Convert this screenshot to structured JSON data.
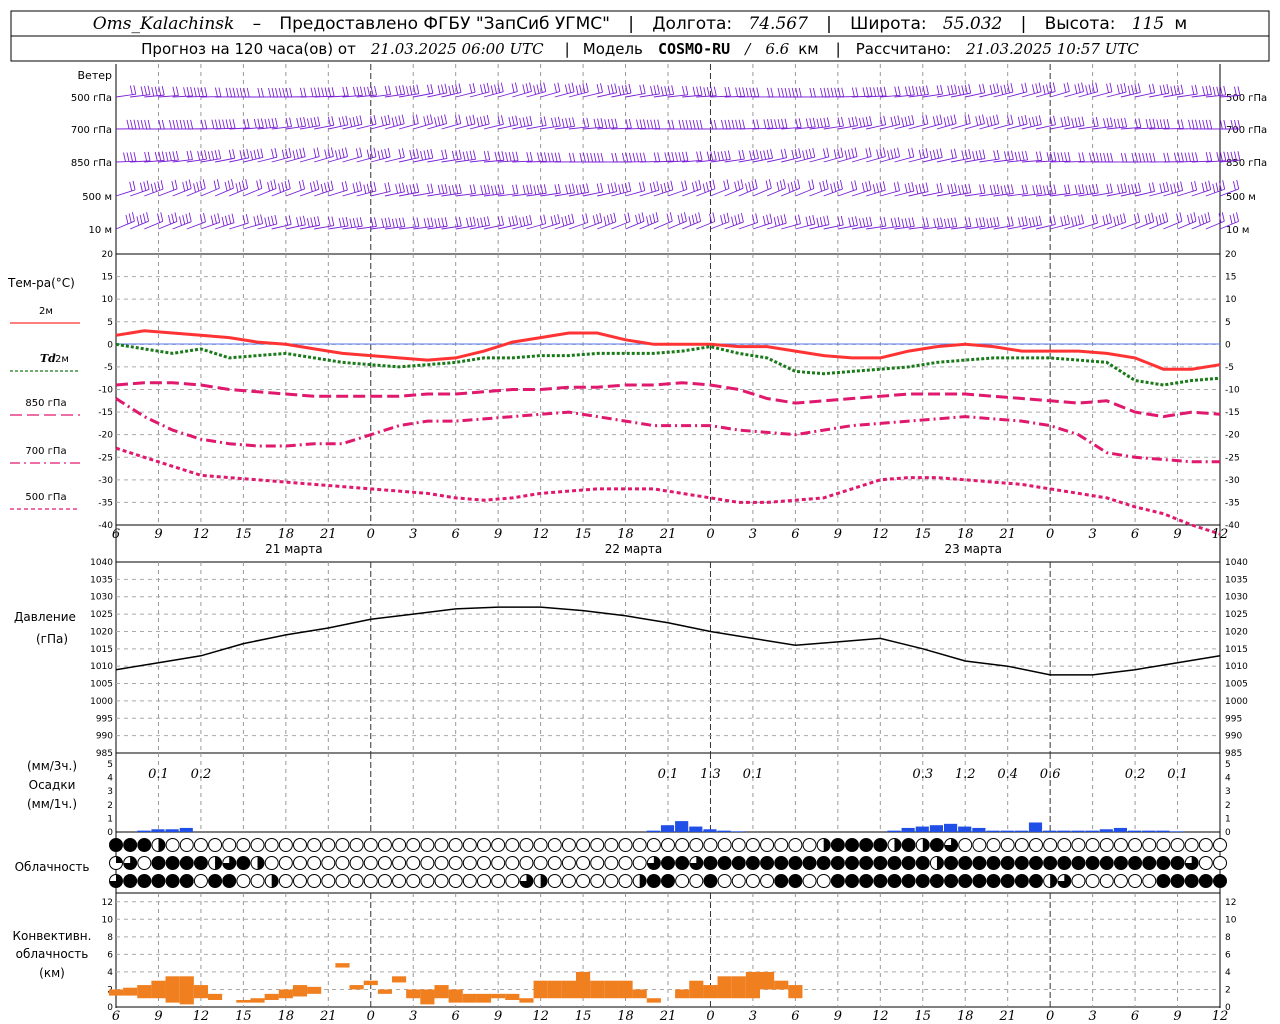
{
  "header": {
    "station": "Oms_Kalachinsk",
    "dash": "–",
    "provider": "Предоставлено ФГБУ \"ЗапСиб УГМС\"",
    "lon_label": "Долгота:",
    "lon_value": "74.567",
    "lat_label": "Широта:",
    "lat_value": "55.032",
    "alt_label": "Высота:",
    "alt_value": "115",
    "alt_unit": "м",
    "forecast_prefix": "Прогноз на 120 часа(ов) от",
    "forecast_start": "21.03.2025 06:00 UTC",
    "model_label": "Модель",
    "model_name": "COSMO-RU",
    "model_sep": "/",
    "model_res": "6.6",
    "model_res_unit": "км",
    "calc_label": "Рассчитано:",
    "calc_time": "21.03.2025 10:57 UTC"
  },
  "x_axis": {
    "hour_labels": [
      "6",
      "9",
      "12",
      "15",
      "18",
      "21",
      "0",
      "3",
      "6",
      "9",
      "12",
      "15",
      "18",
      "21",
      "0",
      "3",
      "6",
      "9",
      "12",
      "15",
      "18",
      "21",
      "0",
      "3",
      "6",
      "9",
      "12"
    ],
    "day_labels": [
      "21 марта",
      "22 марта",
      "23 марта"
    ]
  },
  "wind_panel": {
    "title": "Ветер",
    "levels": [
      "500 гПа",
      "700 гПа",
      "850 гПа",
      "500 м",
      "10 м"
    ],
    "color": "#7a1fd6"
  },
  "temp_panel": {
    "title": "Тем-ра(°С)",
    "ticks": [
      "20",
      "15",
      "10",
      "5",
      "0",
      "-5",
      "-10",
      "-15",
      "-20",
      "-25",
      "-30",
      "-35",
      "-40"
    ],
    "legend": [
      {
        "label": "2м",
        "color": "#ff3333",
        "style": "solid"
      },
      {
        "label_prefix": "Td",
        "label": "2м",
        "color": "#1a7a1a",
        "style": "dotted"
      },
      {
        "label": "850 гПа",
        "color": "#e0186e",
        "style": "dashed"
      },
      {
        "label": "700 гПа",
        "color": "#e0186e",
        "style": "dashdot"
      },
      {
        "label": "500 гПа",
        "color": "#e0186e",
        "style": "short-dashed"
      }
    ]
  },
  "pressure_panel": {
    "title": "Давление",
    "unit": "(гПа)",
    "ticks": [
      "1040",
      "1035",
      "1030",
      "1025",
      "1020",
      "1015",
      "1010",
      "1005",
      "1000",
      "995",
      "990",
      "985"
    ]
  },
  "precip_panel": {
    "unit_top": "(мм/3ч.)",
    "title": "Осадки",
    "unit_bottom": "(мм/1ч.)",
    "ticks": [
      "5",
      "4",
      "3",
      "2",
      "1",
      "0"
    ],
    "labels": [
      {
        "h": 3,
        "text": "0.1"
      },
      {
        "h": 6,
        "text": "0.2"
      },
      {
        "h": 39,
        "text": "0.1"
      },
      {
        "h": 42,
        "text": "1.3"
      },
      {
        "h": 45,
        "text": "0.1"
      },
      {
        "h": 57,
        "text": "0.3"
      },
      {
        "h": 60,
        "text": "1.2"
      },
      {
        "h": 63,
        "text": "0.4"
      },
      {
        "h": 66,
        "text": "0.6"
      },
      {
        "h": 72,
        "text": "0.2"
      },
      {
        "h": 75,
        "text": "0.1"
      }
    ],
    "color": "#1f4fe6"
  },
  "cloud_panel": {
    "title": "Облачность",
    "row1": "FFFHOOOOOOOOOOOOOOOOOOOOOOOOOOOOOOOOOOOOOOOOOOOOOOHFFFFHFHFQOOOOOOOOOOOOOOOOOOOOOOOOOOOOOOOOOOOOOOOOOOOOOOOOOOOOOOOOOOOOOOOOOOOOOOOOOOOOOOOOOOOOOOOOOOOOOOOOOOOOOOOOOOOOOOOOOOOOOOOOOOOOOOOOOOOOOOOOOOOOOOOOOOOOOOOOOOOOOOO",
    "row2": "TQOFFFFHQFHOOOOOOOOOOOOOOOOOOOOOOOOOOOQFFQFFFFFFFFFFFFFFFFHFFFFFFFFFFFFFFFFFQOOOOOOOOOOQOOOOOOOOFFFFFFFFFFFFFOOOOOOOOOOOOOOOOOOOOOOOOOOOOOOOOOOOOOOOOOOOOOOOOOOOOOOOOOOOOOOOOOOOOOOOOOOOOOOOOOOOOOOOOOOOOOOOOOO",
    "row3": "QFFFFFOFFOOHOOOOOOOOOOOOOOOOOQHOOOOOOHFFOOFOOOOFFOOFFFFFFFFFFFFFFFHQOOOOOOFFFFFFFFFFFFFFFFFFOOOOOOOOOOOOOOOOOOOOOOOOOOOOOOOOOOOOOOOOOOOOOOOOOOOOOOOOOOOOOOOOOOOOOOOOOOOOOOOOOOOOOOOOOOOOOOOOOOOOOOOOOOOOO"
  },
  "conv_panel": {
    "title_1": "Конвективн.",
    "title_2": "облачность",
    "unit": "(км)",
    "ticks": [
      "12",
      "10",
      "8",
      "6",
      "4",
      "2",
      "0"
    ],
    "color": "#f07f20"
  },
  "chart_data": [
    {
      "type": "line",
      "title": "Тем-ра(°С)",
      "ylim": [
        -40,
        20
      ],
      "x_hours": [
        0,
        2,
        4,
        6,
        8,
        10,
        12,
        14,
        16,
        18,
        20,
        22,
        24,
        26,
        28,
        30,
        32,
        34,
        36,
        38,
        40,
        42,
        44,
        46,
        48,
        50,
        52,
        54,
        56,
        58,
        60,
        62,
        64,
        66,
        68,
        70,
        72,
        74,
        76,
        78
      ],
      "series": [
        {
          "name": "2м",
          "values": [
            2,
            3,
            2.5,
            2,
            1.5,
            0.5,
            0,
            -1,
            -2,
            -2.5,
            -3,
            -3.5,
            -3,
            -1.5,
            0.5,
            1.5,
            2.5,
            2.5,
            1,
            0,
            0,
            0,
            -0.5,
            -0.5,
            -1.5,
            -2.5,
            -3,
            -3,
            -1.5,
            -0.5,
            0,
            -0.5,
            -1.5,
            -1.5,
            -1.5,
            -2,
            -3,
            -5.5,
            -5.5,
            -4.5
          ]
        },
        {
          "name": "Td 2м",
          "values": [
            0,
            -1,
            -2,
            -1,
            -3,
            -2.5,
            -2,
            -3,
            -4,
            -4.5,
            -5,
            -4.5,
            -4,
            -3,
            -3,
            -2.5,
            -2.5,
            -2,
            -2,
            -2,
            -1.5,
            -0.5,
            -2,
            -3,
            -6,
            -6.5,
            -6,
            -5.5,
            -5,
            -4,
            -3.5,
            -3,
            -3,
            -3,
            -3.5,
            -4,
            -8,
            -9,
            -8,
            -7.5
          ]
        },
        {
          "name": "850 гПа",
          "values": [
            -9,
            -8.5,
            -8.5,
            -9,
            -10,
            -10.5,
            -11,
            -11.5,
            -11.5,
            -11.5,
            -11.5,
            -11,
            -11,
            -10.5,
            -10,
            -10,
            -9.5,
            -9.5,
            -9,
            -9,
            -8.5,
            -9,
            -10,
            -12,
            -13,
            -12.5,
            -12,
            -11.5,
            -11,
            -11,
            -11,
            -11.5,
            -12,
            -12.5,
            -13,
            -12.5,
            -15,
            -16,
            -15,
            -15.5
          ]
        },
        {
          "name": "700 гПа",
          "values": [
            -12,
            -16,
            -19,
            -21,
            -22,
            -22.5,
            -22.5,
            -22,
            -22,
            -20,
            -18,
            -17,
            -17,
            -16.5,
            -16,
            -15.5,
            -15,
            -16,
            -17,
            -18,
            -18,
            -18,
            -19,
            -19.5,
            -20,
            -19,
            -18,
            -17.5,
            -17,
            -16.5,
            -16,
            -16.5,
            -17,
            -18,
            -20,
            -24,
            -25,
            -25.5,
            -26,
            -26
          ]
        },
        {
          "name": "500 гПа",
          "values": [
            -23,
            -25,
            -27,
            -29,
            -29.5,
            -30,
            -30.5,
            -31,
            -31.5,
            -32,
            -32.5,
            -33,
            -34,
            -34.5,
            -34,
            -33,
            -32.5,
            -32,
            -32,
            -32,
            -33,
            -34,
            -35,
            -35,
            -34.5,
            -34,
            -32,
            -30,
            -29.5,
            -29.5,
            -30,
            -30.5,
            -31,
            -32,
            -33,
            -34,
            -36,
            -37.5,
            -40,
            -42
          ]
        }
      ]
    },
    {
      "type": "line",
      "title": "Давление",
      "ylabel": "(гПа)",
      "ylim": [
        985,
        1040
      ],
      "x_hours": [
        0,
        3,
        6,
        9,
        12,
        15,
        18,
        21,
        24,
        27,
        30,
        33,
        36,
        39,
        42,
        45,
        48,
        51,
        54,
        57,
        60,
        63,
        66,
        69,
        72,
        75,
        78
      ],
      "values": [
        1009,
        1011,
        1013,
        1016.5,
        1019,
        1021,
        1023.5,
        1025,
        1026.5,
        1027,
        1027,
        1026,
        1024.5,
        1022.5,
        1020,
        1018,
        1016,
        1017,
        1018,
        1015,
        1011.5,
        1010,
        1007.5,
        1007.5,
        1009,
        1011,
        1013
      ]
    },
    {
      "type": "bar",
      "title": "Осадки",
      "ylabel": "(мм/1ч.)",
      "ylim": [
        0,
        5
      ],
      "x_hours": [
        2,
        3,
        4,
        5,
        38,
        39,
        40,
        41,
        42,
        43,
        44,
        55,
        56,
        57,
        58,
        59,
        60,
        61,
        62,
        63,
        64,
        65,
        66,
        67,
        68,
        69,
        70,
        71,
        72,
        73,
        74,
        75
      ],
      "values": [
        0.1,
        0.2,
        0.2,
        0.3,
        0.1,
        0.5,
        0.8,
        0.4,
        0.2,
        0.1,
        0.05,
        0.1,
        0.3,
        0.4,
        0.5,
        0.6,
        0.4,
        0.3,
        0.1,
        0.1,
        0.1,
        0.7,
        0.1,
        0.1,
        0.1,
        0.1,
        0.2,
        0.3,
        0.1,
        0.1,
        0.1,
        0.05
      ]
    },
    {
      "type": "bar",
      "title": "Конвективн. облачность",
      "ylabel": "(км)",
      "ylim": [
        0,
        13
      ],
      "segments": [
        {
          "h": 0,
          "top": 2,
          "bottom": 1.3
        },
        {
          "h": 1,
          "top": 2.2,
          "bottom": 1.3
        },
        {
          "h": 2,
          "top": 2.5,
          "bottom": 1
        },
        {
          "h": 3,
          "top": 3,
          "bottom": 1
        },
        {
          "h": 4,
          "top": 3.5,
          "bottom": 0.5
        },
        {
          "h": 5,
          "top": 3.5,
          "bottom": 0.3
        },
        {
          "h": 6,
          "top": 2.5,
          "bottom": 1
        },
        {
          "h": 7,
          "top": 1.5,
          "bottom": 0.8
        },
        {
          "h": 9,
          "top": 0.8,
          "bottom": 0.5
        },
        {
          "h": 10,
          "top": 1,
          "bottom": 0.5
        },
        {
          "h": 11,
          "top": 1.5,
          "bottom": 0.8
        },
        {
          "h": 12,
          "top": 2,
          "bottom": 1
        },
        {
          "h": 13,
          "top": 2.5,
          "bottom": 1.2
        },
        {
          "h": 14,
          "top": 2.3,
          "bottom": 1.5
        },
        {
          "h": 16,
          "top": 5,
          "bottom": 4.5
        },
        {
          "h": 17,
          "top": 2.5,
          "bottom": 2
        },
        {
          "h": 18,
          "top": 3,
          "bottom": 2.5
        },
        {
          "h": 19,
          "top": 2,
          "bottom": 1.5
        },
        {
          "h": 20,
          "top": 3.5,
          "bottom": 2.8
        },
        {
          "h": 21,
          "top": 2,
          "bottom": 1
        },
        {
          "h": 22,
          "top": 2,
          "bottom": 0.3
        },
        {
          "h": 23,
          "top": 2.5,
          "bottom": 1
        },
        {
          "h": 24,
          "top": 2,
          "bottom": 0.5
        },
        {
          "h": 25,
          "top": 1.5,
          "bottom": 0.5
        },
        {
          "h": 26,
          "top": 1.5,
          "bottom": 0.5
        },
        {
          "h": 27,
          "top": 1.5,
          "bottom": 1
        },
        {
          "h": 28,
          "top": 1.5,
          "bottom": 0.8
        },
        {
          "h": 29,
          "top": 1,
          "bottom": 0.5
        },
        {
          "h": 30,
          "top": 3,
          "bottom": 1
        },
        {
          "h": 31,
          "top": 3,
          "bottom": 1
        },
        {
          "h": 32,
          "top": 3,
          "bottom": 1
        },
        {
          "h": 33,
          "top": 4,
          "bottom": 1
        },
        {
          "h": 34,
          "top": 3,
          "bottom": 1
        },
        {
          "h": 35,
          "top": 3,
          "bottom": 1
        },
        {
          "h": 36,
          "top": 3,
          "bottom": 1
        },
        {
          "h": 37,
          "top": 2,
          "bottom": 1
        },
        {
          "h": 38,
          "top": 1,
          "bottom": 0.5
        },
        {
          "h": 40,
          "top": 2,
          "bottom": 1
        },
        {
          "h": 41,
          "top": 3,
          "bottom": 1
        },
        {
          "h": 42,
          "top": 2.5,
          "bottom": 1
        },
        {
          "h": 43,
          "top": 3.5,
          "bottom": 1
        },
        {
          "h": 44,
          "top": 3.5,
          "bottom": 1
        },
        {
          "h": 45,
          "top": 4,
          "bottom": 1
        },
        {
          "h": 46,
          "top": 4,
          "bottom": 2
        },
        {
          "h": 47,
          "top": 3,
          "bottom": 2
        },
        {
          "h": 48,
          "top": 2.5,
          "bottom": 1
        }
      ]
    }
  ]
}
